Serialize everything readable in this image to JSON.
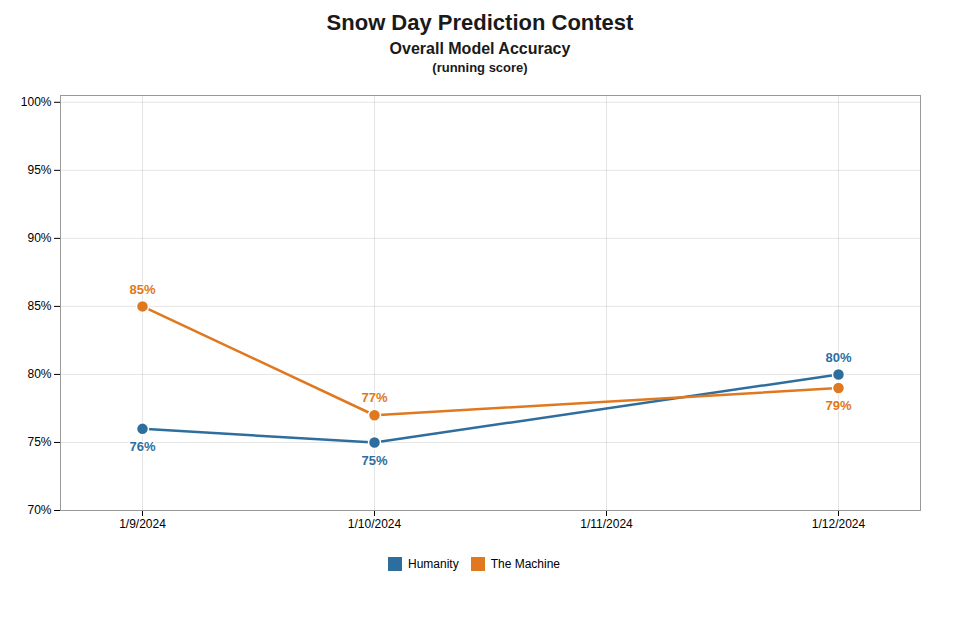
{
  "chart_data": {
    "type": "line",
    "title": "Snow Day Prediction Contest",
    "subtitle": [
      "Overall Model Accuracy",
      "(running score)"
    ],
    "categories": [
      "1/9/2024",
      "1/10/2024",
      "1/11/2024",
      "1/12/2024"
    ],
    "series": [
      {
        "name": "Humanity",
        "color": "#2E6E9E",
        "values": [
          0.76,
          0.75,
          null,
          0.8
        ],
        "value_labels": [
          "76%",
          "75%",
          null,
          "80%"
        ]
      },
      {
        "name": "The Machine",
        "color": "#E07820",
        "values": [
          0.85,
          0.77,
          null,
          0.79
        ],
        "value_labels": [
          "85%",
          "77%",
          null,
          "79%"
        ]
      }
    ],
    "ylim": [
      0.7,
      1.005
    ],
    "yticks": [
      {
        "value": 0.7,
        "label": "70%"
      },
      {
        "value": 0.75,
        "label": "75%"
      },
      {
        "value": 0.8,
        "label": "80%"
      },
      {
        "value": 0.85,
        "label": "85%"
      },
      {
        "value": 0.9,
        "label": "90%"
      },
      {
        "value": 0.95,
        "label": "95%"
      },
      {
        "value": 1.0,
        "label": "100%"
      }
    ],
    "grid": true,
    "legend": "bottom",
    "data_labels": true,
    "marker": "circle"
  }
}
